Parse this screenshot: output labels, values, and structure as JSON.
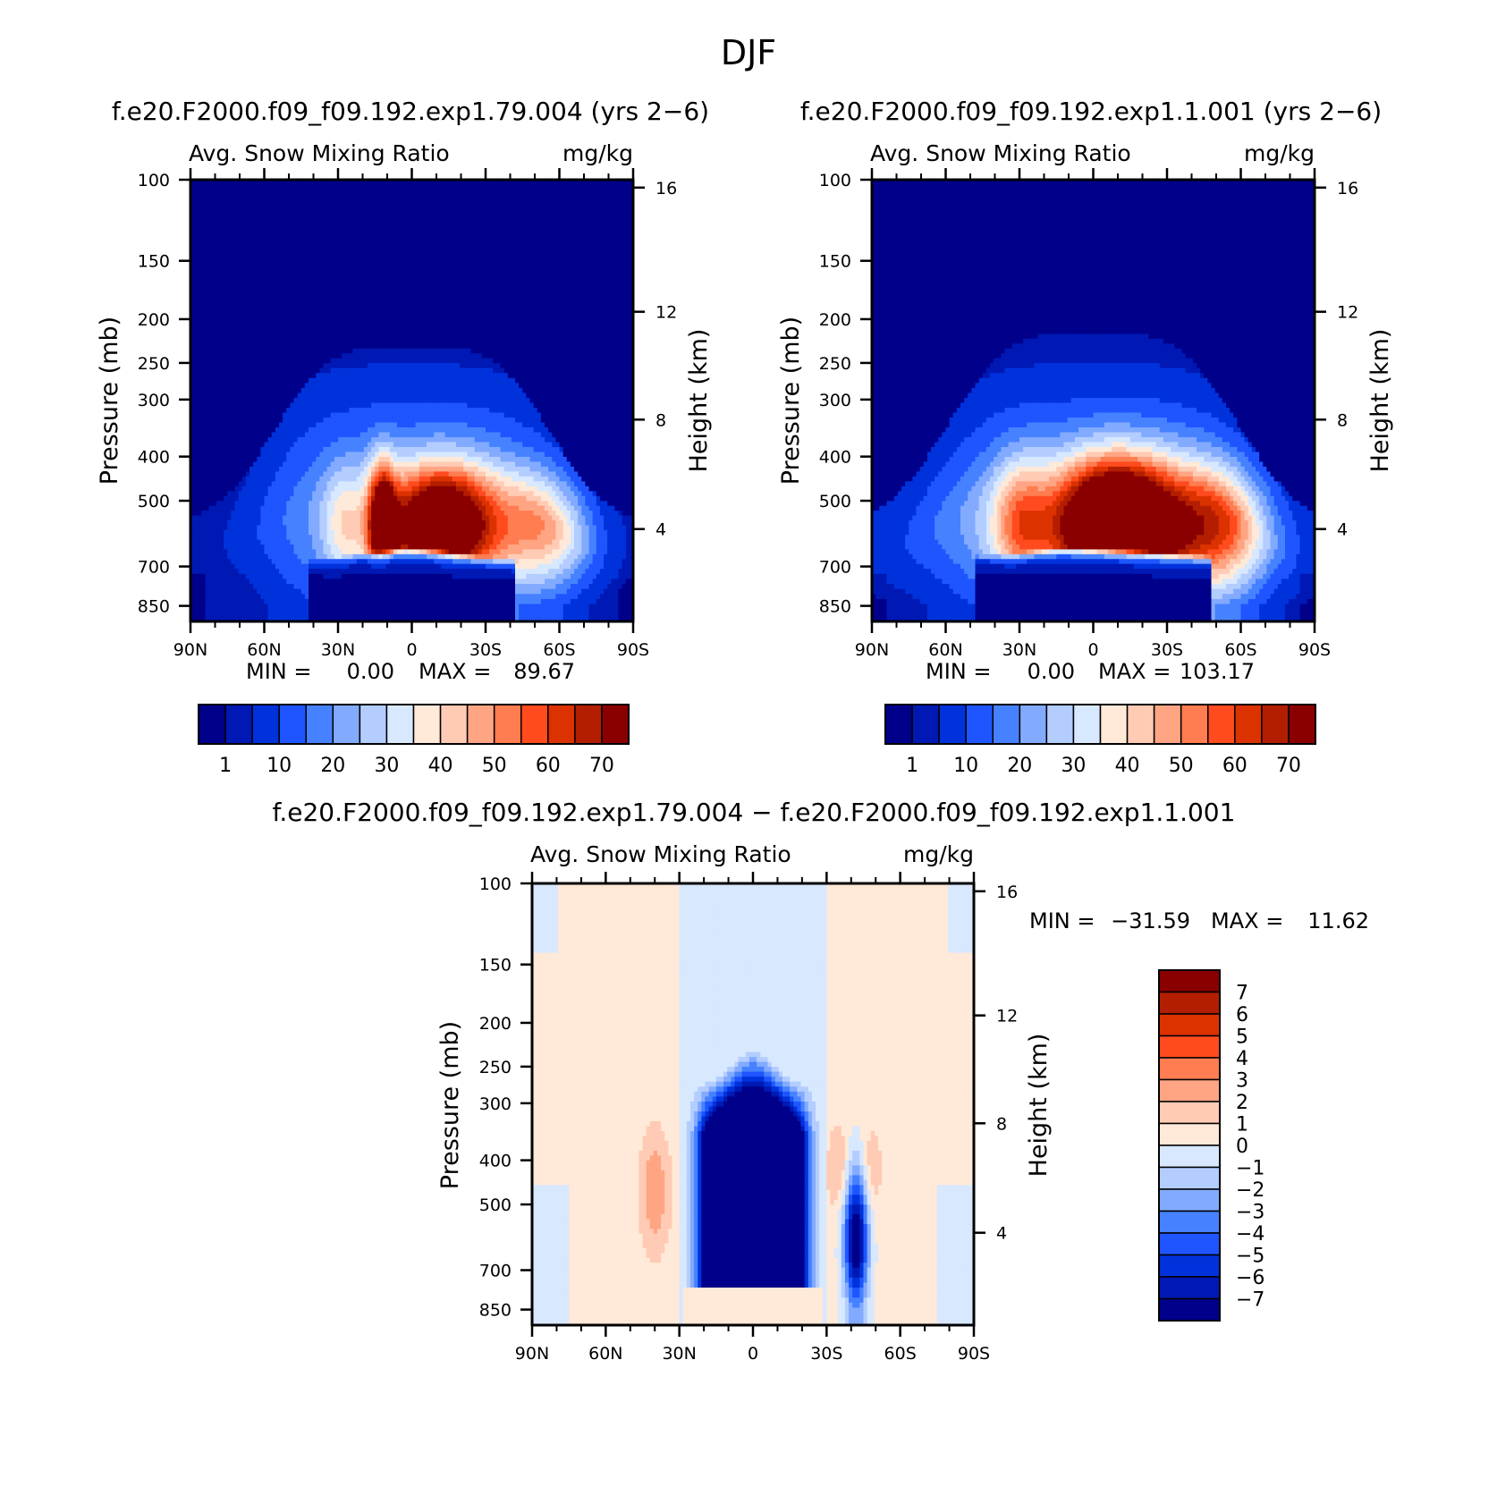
{
  "main_title": "DJF",
  "colors": {
    "seq": [
      "#00008a",
      "#0019b4",
      "#0032dc",
      "#1e55ff",
      "#4682ff",
      "#82aaff",
      "#b4cdff",
      "#d7e8ff",
      "#ffe9d8",
      "#ffcbb4",
      "#ffa583",
      "#ff7d50",
      "#ff4b1e",
      "#dc3200",
      "#b41e00",
      "#8a0000"
    ],
    "div": [
      "#00008a",
      "#0019b4",
      "#0032dc",
      "#1e55ff",
      "#4682ff",
      "#82aaff",
      "#b4cdff",
      "#d7e8ff",
      "#ffe9d8",
      "#ffcbb4",
      "#ffa583",
      "#ff7d50",
      "#ff4b1e",
      "#dc3200",
      "#b41e00",
      "#8a0000"
    ]
  },
  "chart_data": [
    {
      "type": "heatmap",
      "case_title": "f.e20.F2000.f09_f09.192.exp1.79.004 (yrs 2−6)",
      "left_title": "Avg. Snow Mixing Ratio",
      "right_title": "mg/kg",
      "ylabel": "Pressure (mb)",
      "ylabel_right": "Height (km)",
      "x_ticks": [
        "90N",
        "60N",
        "30N",
        "0",
        "30S",
        "60S",
        "90S"
      ],
      "y_ticks": [
        "100",
        "150",
        "200",
        "250",
        "300",
        "400",
        "500",
        "700",
        "850"
      ],
      "height_ticks": [
        "16",
        "12",
        "8",
        "4"
      ],
      "min_label": "MIN =",
      "min_value": "0.00",
      "max_label": "MAX =",
      "max_value": "89.67",
      "colorbar_labels": [
        "1",
        "10",
        "20",
        "30",
        "40",
        "50",
        "60",
        "70"
      ],
      "levels": [
        1,
        5,
        10,
        15,
        20,
        25,
        30,
        35,
        40,
        45,
        50,
        55,
        60,
        65,
        70
      ]
    },
    {
      "type": "heatmap",
      "case_title": "f.e20.F2000.f09_f09.192.exp1.1.001 (yrs 2−6)",
      "left_title": "Avg. Snow Mixing Ratio",
      "right_title": "mg/kg",
      "ylabel": "Pressure (mb)",
      "ylabel_right": "Height (km)",
      "x_ticks": [
        "90N",
        "60N",
        "30N",
        "0",
        "30S",
        "60S",
        "90S"
      ],
      "y_ticks": [
        "100",
        "150",
        "200",
        "250",
        "300",
        "400",
        "500",
        "700",
        "850"
      ],
      "height_ticks": [
        "16",
        "12",
        "8",
        "4"
      ],
      "min_label": "MIN =",
      "min_value": "0.00",
      "max_label": "MAX =",
      "max_value": "103.17",
      "colorbar_labels": [
        "1",
        "10",
        "20",
        "30",
        "40",
        "50",
        "60",
        "70"
      ],
      "levels": [
        1,
        5,
        10,
        15,
        20,
        25,
        30,
        35,
        40,
        45,
        50,
        55,
        60,
        65,
        70
      ]
    },
    {
      "type": "heatmap",
      "case_title": "f.e20.F2000.f09_f09.192.exp1.79.004 − f.e20.F2000.f09_f09.192.exp1.1.001",
      "left_title": "Avg. Snow Mixing Ratio",
      "right_title": "mg/kg",
      "ylabel": "Pressure (mb)",
      "ylabel_right": "Height (km)",
      "x_ticks": [
        "90N",
        "60N",
        "30N",
        "0",
        "30S",
        "60S",
        "90S"
      ],
      "y_ticks": [
        "100",
        "150",
        "200",
        "250",
        "300",
        "400",
        "500",
        "700",
        "850"
      ],
      "height_ticks": [
        "16",
        "12",
        "8",
        "4"
      ],
      "min_label": "MIN =",
      "min_value": "−31.59",
      "max_label": "MAX =",
      "max_value": "11.62",
      "colorbar_labels": [
        "7",
        "6",
        "5",
        "4",
        "3",
        "2",
        "1",
        "0",
        "−1",
        "−2",
        "−3",
        "−4",
        "−5",
        "−6",
        "−7"
      ],
      "levels": [
        -7,
        -6,
        -5,
        -4,
        -3,
        -2,
        -1,
        0,
        1,
        2,
        3,
        4,
        5,
        6,
        7
      ]
    }
  ]
}
